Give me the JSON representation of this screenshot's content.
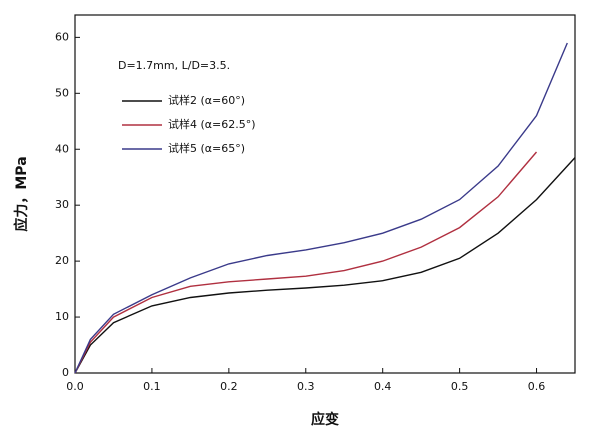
{
  "chart_data": {
    "type": "line",
    "annotation": "D=1.7mm, L/D=3.5.",
    "x_label": "应变",
    "y_label": "应力，MPa",
    "xlim": [
      0,
      0.65
    ],
    "ylim": [
      0,
      64
    ],
    "xticks": [
      {
        "value": 0,
        "label": "0.0"
      },
      0.1,
      0.2,
      0.3,
      0.4,
      0.5,
      0.6
    ],
    "yticks": [
      0,
      10,
      20,
      30,
      40,
      50,
      60
    ],
    "grid": false,
    "series": [
      {
        "name": "试样2 (α=60°)",
        "color": "#111111",
        "x": [
          0,
          0.02,
          0.05,
          0.1,
          0.15,
          0.2,
          0.25,
          0.3,
          0.35,
          0.4,
          0.45,
          0.5,
          0.55,
          0.6,
          0.65
        ],
        "values": [
          0,
          5,
          9,
          12,
          13.5,
          14.3,
          14.8,
          15.2,
          15.7,
          16.5,
          18,
          20.5,
          25,
          31,
          38.5
        ]
      },
      {
        "name": "试样4 (α=62.5°)",
        "color": "#b03040",
        "x": [
          0,
          0.02,
          0.05,
          0.1,
          0.15,
          0.2,
          0.25,
          0.3,
          0.35,
          0.4,
          0.45,
          0.5,
          0.55,
          0.6
        ],
        "values": [
          0,
          5.5,
          10,
          13.5,
          15.5,
          16.3,
          16.8,
          17.3,
          18.3,
          20,
          22.5,
          26,
          31.5,
          39.5
        ]
      },
      {
        "name": "试样5 (α=65°)",
        "color": "#3a3a8a",
        "x": [
          0,
          0.02,
          0.05,
          0.1,
          0.15,
          0.2,
          0.25,
          0.3,
          0.35,
          0.4,
          0.45,
          0.5,
          0.55,
          0.6,
          0.64
        ],
        "values": [
          0,
          6,
          10.5,
          14,
          17,
          19.5,
          21,
          22,
          23.3,
          25,
          27.5,
          31,
          37,
          46,
          59
        ]
      }
    ]
  }
}
